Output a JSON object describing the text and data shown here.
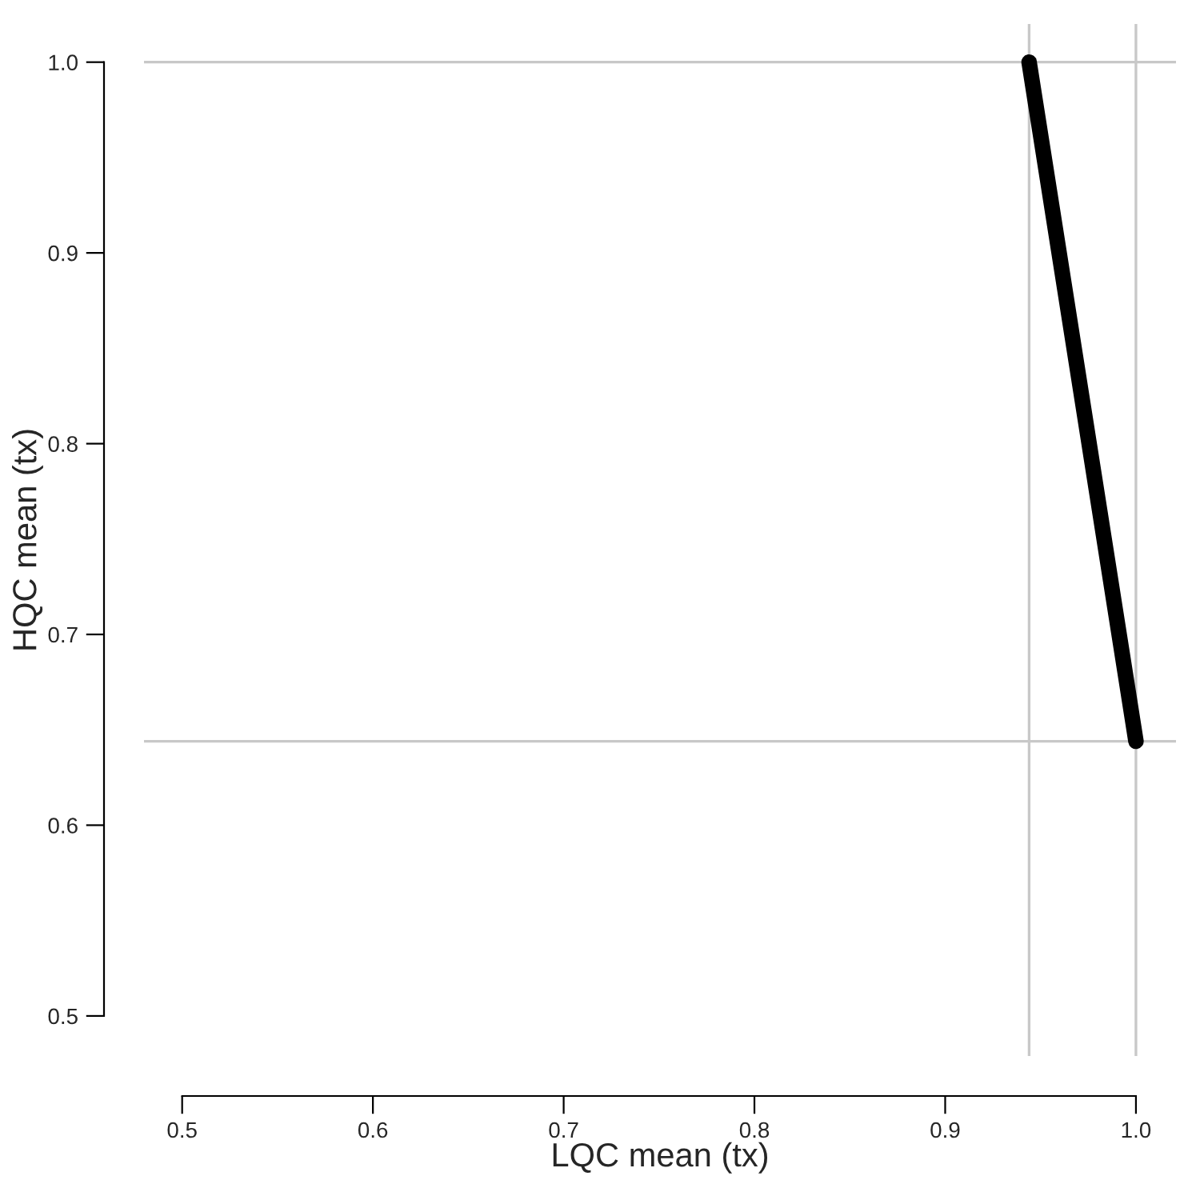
{
  "chart_data": {
    "type": "line",
    "xlabel": "LQC mean (tx)",
    "ylabel": "HQC mean (tx)",
    "x": [
      0.944,
      1.0
    ],
    "series": [
      {
        "color": "#000000",
        "values": [
          1.0,
          0.644
        ]
      }
    ],
    "xlim": [
      0.48,
      1.021
    ],
    "ylim": [
      0.479,
      1.02
    ],
    "xticks": [
      0.5,
      0.6,
      0.7,
      0.8,
      0.9,
      {
        "value": 1.0,
        "label": "1.0"
      }
    ],
    "yticks": [
      0.5,
      0.6,
      0.7,
      0.8,
      0.9,
      {
        "value": 1.0,
        "label": "1.0"
      }
    ],
    "ref_lines": [
      {
        "axis": "x",
        "value": 0.944,
        "color": "#c8c8c8"
      },
      {
        "axis": "x",
        "value": 1.0,
        "color": "#c8c8c8"
      },
      {
        "axis": "y",
        "value": 1.0,
        "color": "#c8c8c8"
      },
      {
        "axis": "y",
        "value": 0.644,
        "color": "#c8c8c8"
      }
    ],
    "grid": false,
    "legend": false,
    "marker": "none",
    "line_style": "solid"
  }
}
